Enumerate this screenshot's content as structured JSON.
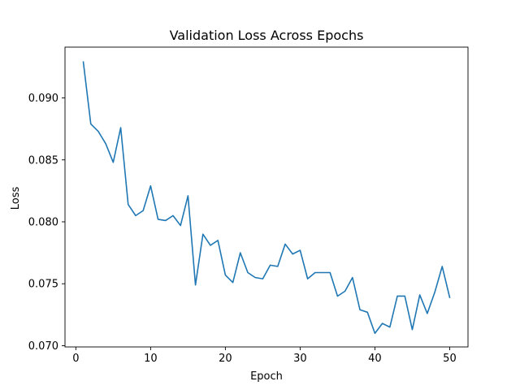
{
  "chart_data": {
    "type": "line",
    "title": "Validation Loss Across Epochs",
    "xlabel": "Epoch",
    "ylabel": "Loss",
    "xlim": [
      -1.45,
      52.45
    ],
    "ylim": [
      0.0699,
      0.0941
    ],
    "xticks": [
      0,
      10,
      20,
      30,
      40,
      50
    ],
    "yticks": [
      0.07,
      0.075,
      0.08,
      0.085,
      0.09
    ],
    "xtick_labels": [
      "0",
      "10",
      "20",
      "30",
      "40",
      "50"
    ],
    "ytick_labels": [
      "0.070",
      "0.075",
      "0.080",
      "0.085",
      "0.090"
    ],
    "grid": false,
    "line_color": "#1f77b4",
    "series": [
      {
        "x": [
          1,
          2,
          3,
          4,
          5,
          6,
          7,
          8,
          9,
          10,
          11,
          12,
          13,
          14,
          15,
          16,
          17,
          18,
          19,
          20,
          21,
          22,
          23,
          24,
          25,
          26,
          27,
          28,
          29,
          30,
          31,
          32,
          33,
          34,
          35,
          36,
          37,
          38,
          39,
          40,
          41,
          42,
          43,
          44,
          45,
          46,
          47,
          48,
          49,
          50
        ],
        "values": [
          0.0929,
          0.0879,
          0.0873,
          0.0863,
          0.0848,
          0.0876,
          0.0814,
          0.0805,
          0.0809,
          0.0829,
          0.0802,
          0.0801,
          0.0805,
          0.0797,
          0.0821,
          0.0749,
          0.079,
          0.0781,
          0.0785,
          0.0757,
          0.0751,
          0.0775,
          0.0759,
          0.0755,
          0.0754,
          0.0765,
          0.0764,
          0.0782,
          0.0774,
          0.0777,
          0.0754,
          0.0759,
          0.0759,
          0.0759,
          0.074,
          0.0744,
          0.0755,
          0.0729,
          0.0727,
          0.071,
          0.0718,
          0.0715,
          0.074,
          0.074,
          0.0713,
          0.0741,
          0.0726,
          0.0743,
          0.0764,
          0.0739
        ]
      }
    ]
  }
}
